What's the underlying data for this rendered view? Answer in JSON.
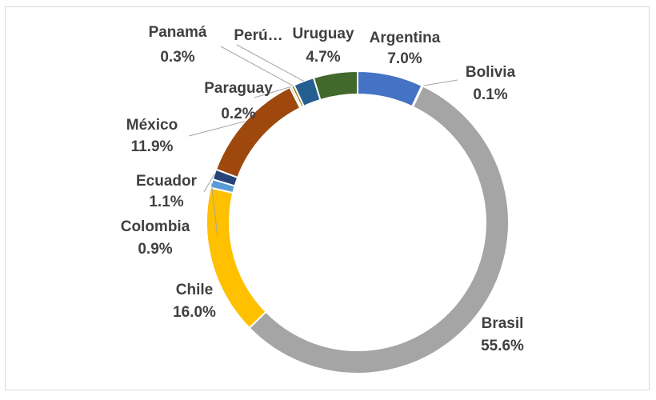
{
  "chart_data": {
    "type": "donut",
    "categories": [
      "Argentina",
      "Bolivia",
      "Brasil",
      "Chile",
      "Colombia",
      "Ecuador",
      "México",
      "Paraguay",
      "Panamá",
      "Perú…",
      "Uruguay"
    ],
    "values": [
      7.0,
      0.1,
      55.6,
      16.0,
      0.9,
      1.1,
      11.9,
      0.2,
      0.3,
      2.2,
      4.7
    ],
    "value_labels": [
      "7.0%",
      "0.1%",
      "55.6%",
      "16.0%",
      "0.9%",
      "1.1%",
      "11.9%",
      "0.2%",
      "0.3%",
      null,
      "4.7%"
    ],
    "colors": [
      "#4472c4",
      "#ed7d31",
      "#a5a5a5",
      "#ffc000",
      "#5b9bd5",
      "#264478",
      "#9e480e",
      "#636363",
      "#997300",
      "#255e91",
      "#43682b"
    ]
  }
}
